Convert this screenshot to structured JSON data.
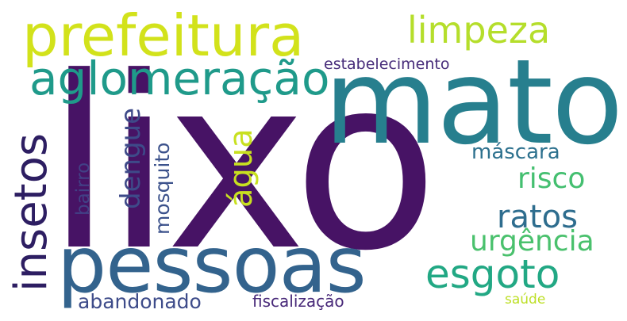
{
  "word_cloud": {
    "words": [
      {
        "text": "lixo",
        "color": "#471365"
      },
      {
        "text": "mato",
        "color": "#277f8e"
      },
      {
        "text": "pessoas",
        "color": "#33638d"
      },
      {
        "text": "prefeitura",
        "color": "#d2e21b"
      },
      {
        "text": "aglomeração",
        "color": "#1f9a8a"
      },
      {
        "text": "limpeza",
        "color": "#b5de2b"
      },
      {
        "text": "esgoto",
        "color": "#22a884"
      },
      {
        "text": "insetos",
        "color": "#2d1e62"
      },
      {
        "text": "ratos",
        "color": "#2e6d8e"
      },
      {
        "text": "urgência",
        "color": "#4ac16d"
      },
      {
        "text": "risco",
        "color": "#44bf70"
      },
      {
        "text": "água",
        "color": "#c8e020"
      },
      {
        "text": "dengue",
        "color": "#3e4a89"
      },
      {
        "text": "máscara",
        "color": "#2d718e"
      },
      {
        "text": "mosquito",
        "color": "#3b518b"
      },
      {
        "text": "bairro",
        "color": "#424186"
      },
      {
        "text": "estabelecimento",
        "color": "#472c7a"
      },
      {
        "text": "abandonado",
        "color": "#3e4c8a"
      },
      {
        "text": "fiscalização",
        "color": "#482979"
      },
      {
        "text": "saúde",
        "color": "#bddf26"
      }
    ]
  }
}
